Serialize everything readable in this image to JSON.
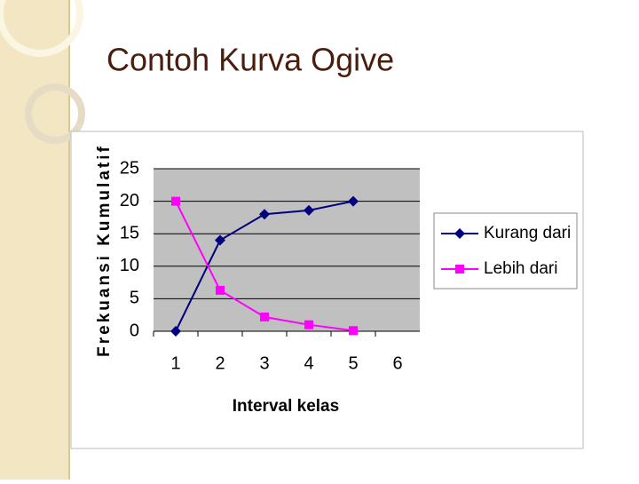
{
  "title": "Contoh Kurva Ogive",
  "chart_data": {
    "type": "line",
    "ylabel": "Frekuansi Kumulatif",
    "xlabel": "Interval kelas",
    "categories": [
      "1",
      "2",
      "3",
      "4",
      "5",
      "6"
    ],
    "series": [
      {
        "name": "Kurang dari",
        "color": "#000080",
        "marker": "diamond",
        "values": [
          0,
          14,
          18,
          18.6,
          20,
          null
        ]
      },
      {
        "name": "Lebih dari",
        "color": "#ff00ff",
        "marker": "square",
        "values": [
          20,
          6.3,
          2.2,
          1,
          0.1,
          null
        ]
      }
    ],
    "ylim": [
      0,
      25
    ],
    "yticks": [
      0,
      5,
      10,
      15,
      20,
      25
    ],
    "grid": true,
    "legend": "right"
  }
}
